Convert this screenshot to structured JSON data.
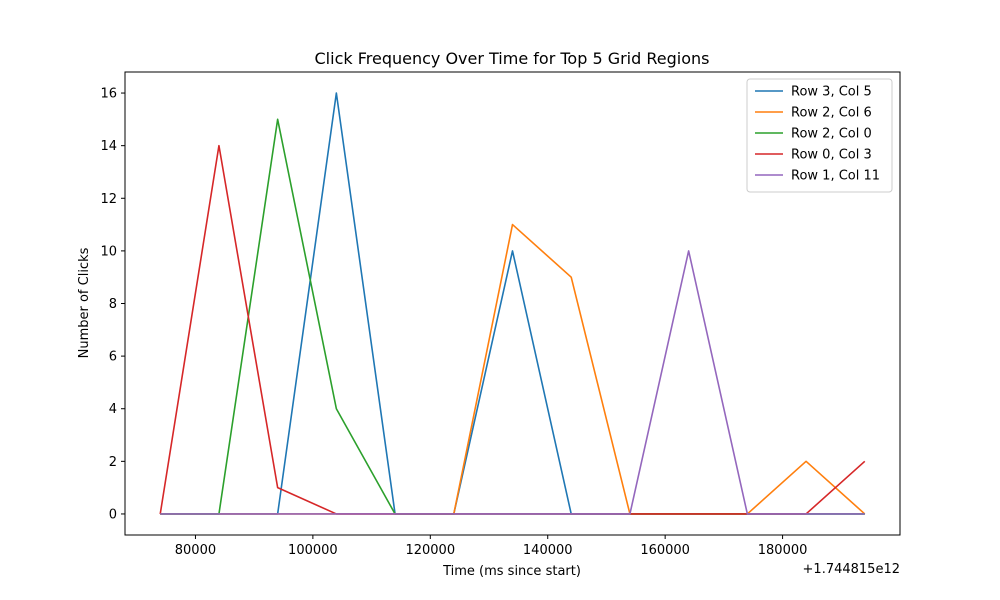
{
  "chart_data": {
    "type": "line",
    "title": "Click Frequency Over Time for Top 5 Grid Regions",
    "xlabel": "Time (ms since start)",
    "ylabel": "Number of Clicks",
    "x_offset_label": "+1.744815e12",
    "x_ticks": [
      80000,
      100000,
      120000,
      140000,
      160000,
      180000
    ],
    "y_ticks": [
      0,
      2,
      4,
      6,
      8,
      10,
      12,
      14,
      16
    ],
    "xlim": [
      68000,
      200000
    ],
    "ylim": [
      -0.8,
      16.8
    ],
    "legend_position": "top-right",
    "grid": false,
    "x": [
      74000,
      84000,
      94000,
      104000,
      114000,
      124000,
      134000,
      144000,
      154000,
      164000,
      174000,
      184000,
      194000
    ],
    "series": [
      {
        "name": "Row 3, Col 5",
        "color": "#1f77b4",
        "values": [
          0,
          0,
          0,
          16,
          0,
          0,
          10,
          0,
          0,
          0,
          0,
          0,
          0
        ]
      },
      {
        "name": "Row 2, Col 6",
        "color": "#ff7f0e",
        "values": [
          0,
          0,
          0,
          0,
          0,
          0,
          11,
          9,
          0,
          0,
          0,
          2,
          0
        ]
      },
      {
        "name": "Row 2, Col 0",
        "color": "#2ca02c",
        "values": [
          0,
          0,
          15,
          4,
          0,
          0,
          0,
          0,
          0,
          0,
          0,
          0,
          0
        ]
      },
      {
        "name": "Row 0, Col 3",
        "color": "#d62728",
        "values": [
          0,
          14,
          1,
          0,
          0,
          0,
          0,
          0,
          0,
          0,
          0,
          0,
          2
        ]
      },
      {
        "name": "Row 1, Col 11",
        "color": "#9467bd",
        "values": [
          0,
          0,
          0,
          0,
          0,
          0,
          0,
          0,
          0,
          10,
          0,
          0,
          0
        ]
      }
    ]
  }
}
